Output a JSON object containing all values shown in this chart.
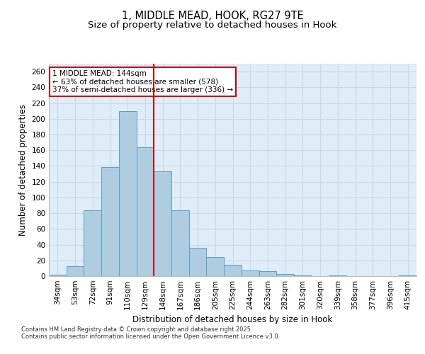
{
  "title1": "1, MIDDLE MEAD, HOOK, RG27 9TE",
  "title2": "Size of property relative to detached houses in Hook",
  "xlabel": "Distribution of detached houses by size in Hook",
  "ylabel": "Number of detached properties",
  "categories": [
    "34sqm",
    "53sqm",
    "72sqm",
    "91sqm",
    "110sqm",
    "129sqm",
    "148sqm",
    "167sqm",
    "186sqm",
    "205sqm",
    "225sqm",
    "244sqm",
    "263sqm",
    "282sqm",
    "301sqm",
    "320sqm",
    "339sqm",
    "358sqm",
    "377sqm",
    "396sqm",
    "415sqm"
  ],
  "values": [
    2,
    13,
    84,
    139,
    210,
    164,
    133,
    84,
    36,
    24,
    14,
    7,
    6,
    3,
    1,
    0,
    1,
    0,
    0,
    0,
    1
  ],
  "bar_color": "#aecde0",
  "bar_edge_color": "#5a9ec9",
  "highlight_line_index": 6,
  "highlight_line_color": "#cc0000",
  "annotation_line1": "1 MIDDLE MEAD: 144sqm",
  "annotation_line2": "← 63% of detached houses are smaller (578)",
  "annotation_line3": "37% of semi-detached houses are larger (336) →",
  "annotation_box_color": "#cc0000",
  "annotation_text_color": "#000000",
  "ylim": [
    0,
    270
  ],
  "yticks": [
    0,
    20,
    40,
    60,
    80,
    100,
    120,
    140,
    160,
    180,
    200,
    220,
    240,
    260
  ],
  "grid_color": "#c8d8e8",
  "background_color": "#deedf7",
  "footnote1": "Contains HM Land Registry data © Crown copyright and database right 2025.",
  "footnote2": "Contains public sector information licensed under the Open Government Licence v3.0.",
  "title1_fontsize": 10.5,
  "title2_fontsize": 9.5,
  "axis_label_fontsize": 8.5,
  "tick_fontsize": 7.5,
  "annotation_fontsize": 7.5,
  "footnote_fontsize": 6.0
}
